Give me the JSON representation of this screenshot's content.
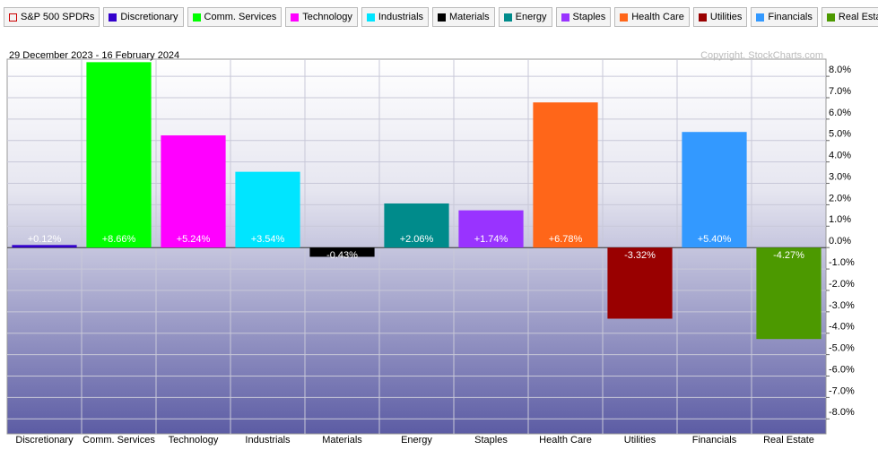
{
  "chart_data": {
    "type": "bar",
    "legend_title": "S&P 500 SPDRs",
    "legend_title_color": "#cc0000",
    "subtitle": "29 December 2023 - 16 February 2024",
    "annotation": "Copyright, StockCharts.com",
    "categories": [
      "Discretionary",
      "Comm. Services",
      "Technology",
      "Industrials",
      "Materials",
      "Energy",
      "Staples",
      "Health Care",
      "Utilities",
      "Financials",
      "Real Estate"
    ],
    "values": [
      0.12,
      8.66,
      5.24,
      3.54,
      -0.43,
      2.06,
      1.74,
      6.78,
      -3.32,
      5.4,
      -4.27
    ],
    "value_labels": [
      "+0.12%",
      "+8.66%",
      "+5.24%",
      "+3.54%",
      "-0.43%",
      "+2.06%",
      "+1.74%",
      "+6.78%",
      "-3.32%",
      "+5.40%",
      "-4.27%"
    ],
    "colors": [
      "#3300cc",
      "#00ff00",
      "#ff00ff",
      "#00e5ff",
      "#000000",
      "#008b8b",
      "#9933ff",
      "#ff6619",
      "#990000",
      "#3399ff",
      "#4c9900"
    ],
    "ylim": [
      -8.7,
      8.8
    ],
    "yticks": [
      {
        "value": 8,
        "label": "8.0%"
      },
      {
        "value": 7,
        "label": "7.0%"
      },
      {
        "value": 6,
        "label": "6.0%"
      },
      {
        "value": 5,
        "label": "5.0%"
      },
      {
        "value": 4,
        "label": "4.0%"
      },
      {
        "value": 3,
        "label": "3.0%"
      },
      {
        "value": 2,
        "label": "2.0%"
      },
      {
        "value": 1,
        "label": "1.0%"
      },
      {
        "value": 0,
        "label": "0.0%"
      },
      {
        "value": -1,
        "label": "-1.0%"
      },
      {
        "value": -2,
        "label": "-2.0%"
      },
      {
        "value": -3,
        "label": "-3.0%"
      },
      {
        "value": -4,
        "label": "-4.0%"
      },
      {
        "value": -5,
        "label": "-5.0%"
      },
      {
        "value": -6,
        "label": "-6.0%"
      },
      {
        "value": -7,
        "label": "-7.0%"
      },
      {
        "value": -8,
        "label": "-8.0%"
      }
    ],
    "grid": true
  }
}
